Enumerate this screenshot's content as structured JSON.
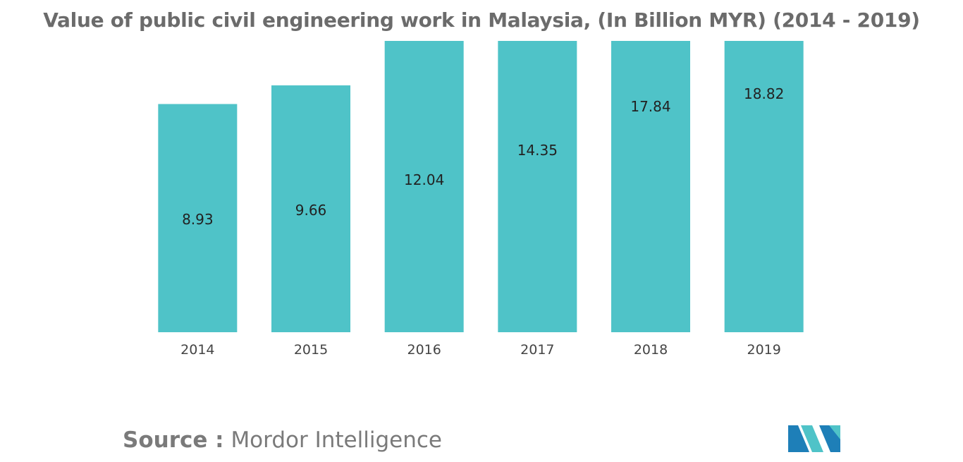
{
  "chart_data": {
    "type": "bar",
    "title": "Value of public civil engineering work in Malaysia, (In Billion MYR) (2014 - 2019)",
    "categories": [
      "2014",
      "2015",
      "2016",
      "2017",
      "2018",
      "2019"
    ],
    "values": [
      8.93,
      9.66,
      12.04,
      14.35,
      17.84,
      18.82
    ],
    "data_labels": [
      "8.93",
      "9.66",
      "12.04",
      "14.35",
      "17.84",
      "18.82"
    ],
    "xlabel": "",
    "ylabel": "",
    "ylim": [
      0,
      11.4
    ],
    "grid": false,
    "legend": "none",
    "bar_color": "#4fc3c8"
  },
  "source": {
    "prefix": "Source :",
    "name": "Mordor Intelligence"
  },
  "logo": {
    "icon": "mordor-intelligence-logo",
    "colors": [
      "#1e7fb8",
      "#4fc3c8"
    ]
  }
}
